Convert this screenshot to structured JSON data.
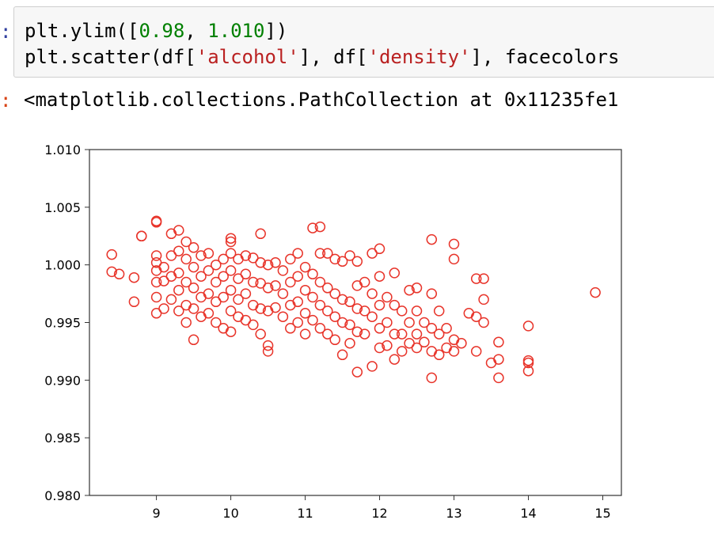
{
  "notebook": {
    "input_prompt": ":",
    "output_prompt": ":",
    "code_line1": {
      "prefix": "plt.ylim([",
      "num1": "0.98",
      "sep": ", ",
      "num2": "1.010",
      "suffix": "])"
    },
    "code_line2": {
      "prefix": "plt.scatter(df[",
      "str1": "'alcohol'",
      "mid": "], df[",
      "str2": "'density'",
      "suffix": "], facecolors"
    },
    "output": "<matplotlib.collections.PathCollection at 0x11235fe1"
  },
  "colors": {
    "marker": "#e8342a",
    "axes": "#333333"
  },
  "chart_data": {
    "type": "scatter",
    "title": "",
    "xlabel": "",
    "ylabel": "",
    "xlim": [
      8.1,
      15.25
    ],
    "ylim": [
      0.98,
      1.01
    ],
    "xticks": [
      9,
      10,
      11,
      12,
      13,
      14,
      15
    ],
    "yticks": [
      0.98,
      0.985,
      0.99,
      0.995,
      1.0,
      1.005,
      1.01
    ],
    "xtick_labels": [
      "9",
      "10",
      "11",
      "12",
      "13",
      "14",
      "15"
    ],
    "ytick_labels": [
      "0.980",
      "0.985",
      "0.990",
      "0.995",
      "1.000",
      "1.005",
      "1.010"
    ],
    "marker": "hollow-circle",
    "grid": false,
    "points": [
      [
        8.4,
        1.0009
      ],
      [
        8.4,
        0.9994
      ],
      [
        8.5,
        0.9992
      ],
      [
        8.7,
        0.9989
      ],
      [
        8.7,
        0.9968
      ],
      [
        8.8,
        1.0025
      ],
      [
        8.8,
        1.0025
      ],
      [
        9.0,
        1.0038
      ],
      [
        9.0,
        1.0037
      ],
      [
        9.0,
        1.0008
      ],
      [
        9.0,
        1.0002
      ],
      [
        9.0,
        0.9995
      ],
      [
        9.0,
        0.9985
      ],
      [
        9.0,
        0.9972
      ],
      [
        9.0,
        0.9958
      ],
      [
        9.1,
        0.9998
      ],
      [
        9.1,
        0.9986
      ],
      [
        9.1,
        0.9962
      ],
      [
        9.2,
        1.0027
      ],
      [
        9.2,
        1.0008
      ],
      [
        9.2,
        0.999
      ],
      [
        9.2,
        0.997
      ],
      [
        9.3,
        1.003
      ],
      [
        9.3,
        1.0012
      ],
      [
        9.3,
        0.9993
      ],
      [
        9.3,
        0.9978
      ],
      [
        9.3,
        0.996
      ],
      [
        9.4,
        1.002
      ],
      [
        9.4,
        1.0005
      ],
      [
        9.4,
        0.9985
      ],
      [
        9.4,
        0.9965
      ],
      [
        9.4,
        0.995
      ],
      [
        9.5,
        1.0015
      ],
      [
        9.5,
        0.9998
      ],
      [
        9.5,
        0.998
      ],
      [
        9.5,
        0.9962
      ],
      [
        9.5,
        0.9935
      ],
      [
        9.6,
        1.0008
      ],
      [
        9.6,
        0.999
      ],
      [
        9.6,
        0.9972
      ],
      [
        9.6,
        0.9955
      ],
      [
        9.7,
        1.001
      ],
      [
        9.7,
        0.9995
      ],
      [
        9.7,
        0.9975
      ],
      [
        9.7,
        0.9958
      ],
      [
        9.8,
        1.0
      ],
      [
        9.8,
        0.9985
      ],
      [
        9.8,
        0.9968
      ],
      [
        9.8,
        0.995
      ],
      [
        9.9,
        1.0005
      ],
      [
        9.9,
        0.999
      ],
      [
        9.9,
        0.9972
      ],
      [
        9.9,
        0.9945
      ],
      [
        10.0,
        1.0023
      ],
      [
        10.0,
        1.002
      ],
      [
        10.0,
        1.001
      ],
      [
        10.0,
        0.9995
      ],
      [
        10.0,
        0.9978
      ],
      [
        10.0,
        0.996
      ],
      [
        10.0,
        0.9942
      ],
      [
        10.1,
        1.0005
      ],
      [
        10.1,
        0.9988
      ],
      [
        10.1,
        0.997
      ],
      [
        10.1,
        0.9955
      ],
      [
        10.2,
        1.0008
      ],
      [
        10.2,
        0.9992
      ],
      [
        10.2,
        0.9975
      ],
      [
        10.2,
        0.9952
      ],
      [
        10.3,
        1.0006
      ],
      [
        10.3,
        0.9985
      ],
      [
        10.3,
        0.9965
      ],
      [
        10.3,
        0.9948
      ],
      [
        10.4,
        1.0027
      ],
      [
        10.4,
        1.0002
      ],
      [
        10.4,
        0.9984
      ],
      [
        10.4,
        0.9962
      ],
      [
        10.4,
        0.994
      ],
      [
        10.5,
        1.0
      ],
      [
        10.5,
        0.998
      ],
      [
        10.5,
        0.996
      ],
      [
        10.5,
        0.993
      ],
      [
        10.5,
        0.9925
      ],
      [
        10.6,
        1.0002
      ],
      [
        10.6,
        0.9982
      ],
      [
        10.6,
        0.9963
      ],
      [
        10.7,
        0.9995
      ],
      [
        10.7,
        0.9975
      ],
      [
        10.7,
        0.9955
      ],
      [
        10.8,
        1.0005
      ],
      [
        10.8,
        0.9985
      ],
      [
        10.8,
        0.9965
      ],
      [
        10.8,
        0.9945
      ],
      [
        10.9,
        1.001
      ],
      [
        10.9,
        0.999
      ],
      [
        10.9,
        0.9968
      ],
      [
        10.9,
        0.995
      ],
      [
        11.0,
        0.9998
      ],
      [
        11.0,
        0.9978
      ],
      [
        11.0,
        0.9958
      ],
      [
        11.0,
        0.994
      ],
      [
        11.1,
        1.0032
      ],
      [
        11.1,
        0.9992
      ],
      [
        11.1,
        0.9972
      ],
      [
        11.1,
        0.9952
      ],
      [
        11.2,
        1.0033
      ],
      [
        11.2,
        1.001
      ],
      [
        11.2,
        0.9985
      ],
      [
        11.2,
        0.9965
      ],
      [
        11.2,
        0.9945
      ],
      [
        11.3,
        1.001
      ],
      [
        11.3,
        0.998
      ],
      [
        11.3,
        0.996
      ],
      [
        11.3,
        0.994
      ],
      [
        11.4,
        1.0005
      ],
      [
        11.4,
        0.9975
      ],
      [
        11.4,
        0.9955
      ],
      [
        11.4,
        0.9935
      ],
      [
        11.5,
        1.0003
      ],
      [
        11.5,
        0.997
      ],
      [
        11.5,
        0.995
      ],
      [
        11.5,
        0.9922
      ],
      [
        11.6,
        1.0008
      ],
      [
        11.6,
        0.9968
      ],
      [
        11.6,
        0.9948
      ],
      [
        11.6,
        0.9932
      ],
      [
        11.7,
        1.0003
      ],
      [
        11.7,
        0.9982
      ],
      [
        11.7,
        0.9962
      ],
      [
        11.7,
        0.9942
      ],
      [
        11.7,
        0.9907
      ],
      [
        11.8,
        0.9985
      ],
      [
        11.8,
        0.996
      ],
      [
        11.8,
        0.994
      ],
      [
        11.9,
        1.001
      ],
      [
        11.9,
        0.9975
      ],
      [
        11.9,
        0.9955
      ],
      [
        11.9,
        0.9912
      ],
      [
        12.0,
        1.0014
      ],
      [
        12.0,
        0.999
      ],
      [
        12.0,
        0.9965
      ],
      [
        12.0,
        0.9945
      ],
      [
        12.0,
        0.9928
      ],
      [
        12.1,
        0.9972
      ],
      [
        12.1,
        0.995
      ],
      [
        12.1,
        0.993
      ],
      [
        12.2,
        0.9993
      ],
      [
        12.2,
        0.9965
      ],
      [
        12.2,
        0.994
      ],
      [
        12.2,
        0.9918
      ],
      [
        12.3,
        0.996
      ],
      [
        12.3,
        0.994
      ],
      [
        12.3,
        0.9925
      ],
      [
        12.4,
        0.9978
      ],
      [
        12.4,
        0.995
      ],
      [
        12.4,
        0.9932
      ],
      [
        12.5,
        0.998
      ],
      [
        12.5,
        0.996
      ],
      [
        12.5,
        0.994
      ],
      [
        12.5,
        0.9928
      ],
      [
        12.6,
        0.995
      ],
      [
        12.6,
        0.9933
      ],
      [
        12.7,
        1.0022
      ],
      [
        12.7,
        0.9975
      ],
      [
        12.7,
        0.9945
      ],
      [
        12.7,
        0.9925
      ],
      [
        12.7,
        0.9902
      ],
      [
        12.8,
        0.996
      ],
      [
        12.8,
        0.994
      ],
      [
        12.8,
        0.9922
      ],
      [
        12.9,
        0.9945
      ],
      [
        12.9,
        0.9928
      ],
      [
        13.0,
        1.0018
      ],
      [
        13.0,
        1.0005
      ],
      [
        13.0,
        0.9935
      ],
      [
        13.0,
        0.9925
      ],
      [
        13.1,
        0.9932
      ],
      [
        13.2,
        0.9958
      ],
      [
        13.3,
        0.9988
      ],
      [
        13.3,
        0.9955
      ],
      [
        13.3,
        0.9925
      ],
      [
        13.4,
        0.9988
      ],
      [
        13.4,
        0.997
      ],
      [
        13.4,
        0.995
      ],
      [
        13.5,
        0.9915
      ],
      [
        13.6,
        0.9933
      ],
      [
        13.6,
        0.9918
      ],
      [
        13.6,
        0.9902
      ],
      [
        14.0,
        0.9947
      ],
      [
        14.0,
        0.9917
      ],
      [
        14.0,
        0.9915
      ],
      [
        14.0,
        0.9908
      ],
      [
        14.9,
        0.9976
      ]
    ]
  }
}
